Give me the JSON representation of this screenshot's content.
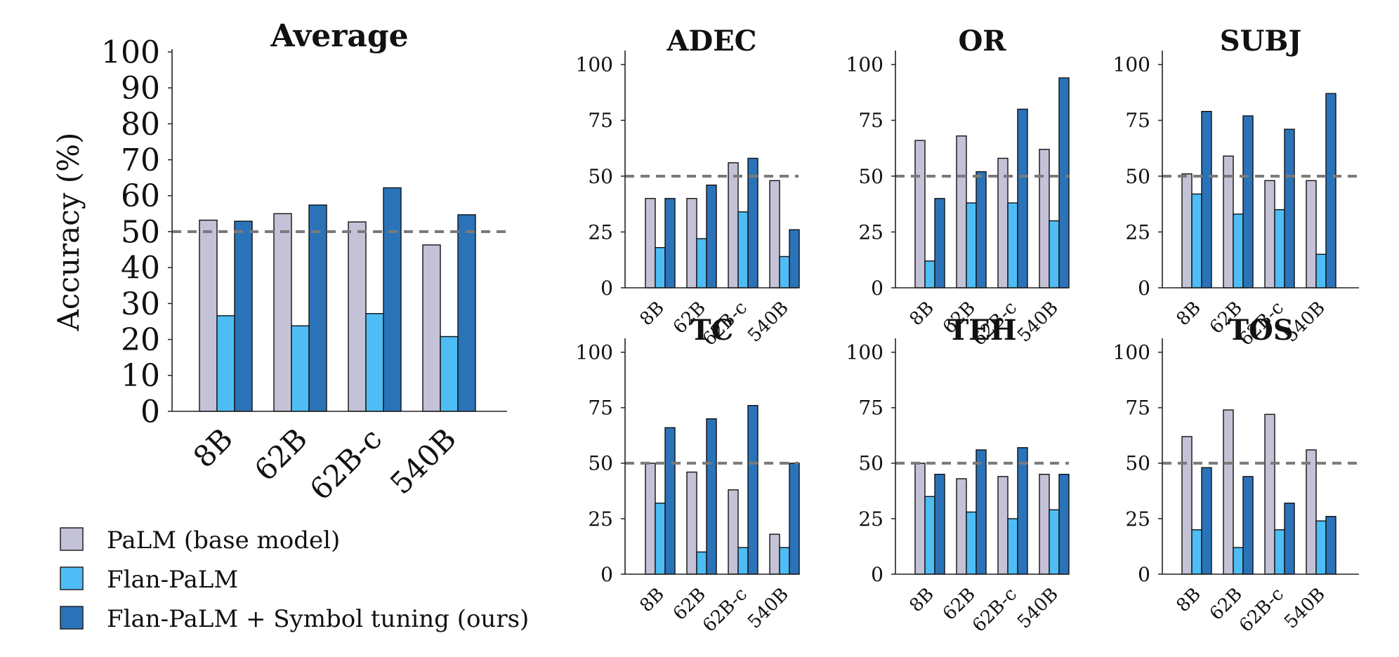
{
  "series_colors": {
    "PaLM (base model)": "#c4c2d6",
    "Flan-PaLM": "#4ebdf5",
    "Flan-PaLM + Symbol tuning (ours)": "#2b73b9"
  },
  "legend": [
    {
      "label": "PaLM (base model)",
      "color": "#c4c2d6"
    },
    {
      "label": "Flan-PaLM",
      "color": "#4ebdf5"
    },
    {
      "label": "Flan-PaLM + Symbol tuning (ours)",
      "color": "#2b73b9"
    }
  ],
  "chart_data": [
    {
      "type": "bar",
      "title": "Average",
      "ylabel": "Accuracy (%)",
      "ylim": [
        0,
        100
      ],
      "yticks": [
        "0",
        "10",
        "20",
        "30",
        "40",
        "50",
        "60",
        "70",
        "80",
        "90",
        "100"
      ],
      "reference_line": 50,
      "categories": [
        "8B",
        "62B",
        "62B-c",
        "540B"
      ],
      "series": [
        {
          "name": "PaLM (base model)",
          "values": [
            53.2,
            55.0,
            52.7,
            46.3
          ]
        },
        {
          "name": "Flan-PaLM",
          "values": [
            26.6,
            23.8,
            27.2,
            20.8
          ]
        },
        {
          "name": "Flan-PaLM + Symbol tuning (ours)",
          "values": [
            52.9,
            57.4,
            62.2,
            54.7
          ]
        }
      ]
    },
    {
      "type": "bar",
      "title": "ADEC",
      "ylim": [
        0,
        105
      ],
      "yticks": [
        "0",
        "25",
        "50",
        "75",
        "100"
      ],
      "reference_line": 50,
      "categories": [
        "8B",
        "62B",
        "62B-c",
        "540B"
      ],
      "series": [
        {
          "name": "PaLM (base model)",
          "values": [
            40,
            40,
            56,
            48
          ]
        },
        {
          "name": "Flan-PaLM",
          "values": [
            18,
            22,
            34,
            14
          ]
        },
        {
          "name": "Flan-PaLM + Symbol tuning (ours)",
          "values": [
            40,
            46,
            58,
            26
          ]
        }
      ]
    },
    {
      "type": "bar",
      "title": "OR",
      "ylim": [
        0,
        105
      ],
      "yticks": [
        "0",
        "25",
        "50",
        "75",
        "100"
      ],
      "reference_line": 50,
      "categories": [
        "8B",
        "62B",
        "62B-c",
        "540B"
      ],
      "series": [
        {
          "name": "PaLM (base model)",
          "values": [
            66,
            68,
            58,
            62
          ]
        },
        {
          "name": "Flan-PaLM",
          "values": [
            12,
            38,
            38,
            30
          ]
        },
        {
          "name": "Flan-PaLM + Symbol tuning (ours)",
          "values": [
            40,
            52,
            80,
            94
          ]
        }
      ]
    },
    {
      "type": "bar",
      "title": "SUBJ",
      "ylim": [
        0,
        105
      ],
      "yticks": [
        "0",
        "25",
        "50",
        "75",
        "100"
      ],
      "reference_line": 50,
      "categories": [
        "8B",
        "62B",
        "62B-c",
        "540B"
      ],
      "series": [
        {
          "name": "PaLM (base model)",
          "values": [
            51,
            59,
            48,
            48
          ]
        },
        {
          "name": "Flan-PaLM",
          "values": [
            42,
            33,
            35,
            15
          ]
        },
        {
          "name": "Flan-PaLM + Symbol tuning (ours)",
          "values": [
            79,
            77,
            71,
            87
          ]
        }
      ]
    },
    {
      "type": "bar",
      "title": "TC",
      "ylim": [
        0,
        105
      ],
      "yticks": [
        "0",
        "25",
        "50",
        "75",
        "100"
      ],
      "reference_line": 50,
      "categories": [
        "8B",
        "62B",
        "62B-c",
        "540B"
      ],
      "series": [
        {
          "name": "PaLM (base model)",
          "values": [
            50,
            46,
            38,
            18
          ]
        },
        {
          "name": "Flan-PaLM",
          "values": [
            32,
            10,
            12,
            12
          ]
        },
        {
          "name": "Flan-PaLM + Symbol tuning (ours)",
          "values": [
            66,
            70,
            76,
            50
          ]
        }
      ]
    },
    {
      "type": "bar",
      "title": "TEH",
      "ylim": [
        0,
        105
      ],
      "yticks": [
        "0",
        "25",
        "50",
        "75",
        "100"
      ],
      "reference_line": 50,
      "categories": [
        "8B",
        "62B",
        "62B-c",
        "540B"
      ],
      "series": [
        {
          "name": "PaLM (base model)",
          "values": [
            50,
            43,
            44,
            45
          ]
        },
        {
          "name": "Flan-PaLM",
          "values": [
            35,
            28,
            25,
            29
          ]
        },
        {
          "name": "Flan-PaLM + Symbol tuning (ours)",
          "values": [
            45,
            56,
            57,
            45
          ]
        }
      ]
    },
    {
      "type": "bar",
      "title": "TOS",
      "ylim": [
        0,
        105
      ],
      "yticks": [
        "0",
        "25",
        "50",
        "75",
        "100"
      ],
      "reference_line": 50,
      "categories": [
        "8B",
        "62B",
        "62B-c",
        "540B"
      ],
      "series": [
        {
          "name": "PaLM (base model)",
          "values": [
            62,
            74,
            72,
            56
          ]
        },
        {
          "name": "Flan-PaLM",
          "values": [
            20,
            12,
            20,
            24
          ]
        },
        {
          "name": "Flan-PaLM + Symbol tuning (ours)",
          "values": [
            48,
            44,
            32,
            26
          ]
        }
      ]
    }
  ]
}
